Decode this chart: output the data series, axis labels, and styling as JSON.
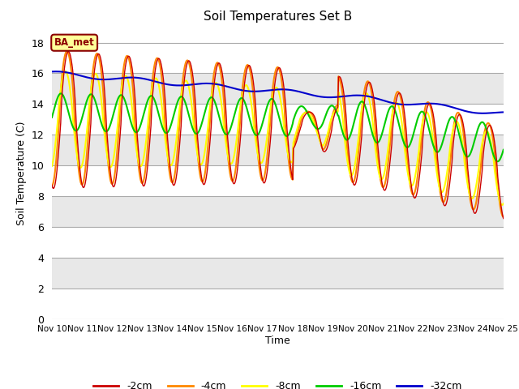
{
  "title": "Soil Temperatures Set B",
  "xlabel": "Time",
  "ylabel": "Soil Temperature (C)",
  "xlim": [
    0,
    15
  ],
  "ylim": [
    0,
    19
  ],
  "yticks": [
    0,
    2,
    4,
    6,
    8,
    10,
    12,
    14,
    16,
    18
  ],
  "xtick_labels": [
    "Nov 10",
    "Nov 11",
    "Nov 12",
    "Nov 13",
    "Nov 14",
    "Nov 15",
    "Nov 16",
    "Nov 17",
    "Nov 18",
    "Nov 19",
    "Nov 20",
    "Nov 21",
    "Nov 22",
    "Nov 23",
    "Nov 24",
    "Nov 25"
  ],
  "colors": {
    "-2cm": "#cc0000",
    "-4cm": "#ff8800",
    "-8cm": "#ffff00",
    "-16cm": "#00cc00",
    "-32cm": "#0000cc"
  },
  "legend_label_text": "BA_met",
  "band_colors": [
    "#ffffff",
    "#e8e8e8"
  ],
  "series_labels": [
    "-2cm",
    "-4cm",
    "-8cm",
    "-16cm",
    "-32cm"
  ]
}
